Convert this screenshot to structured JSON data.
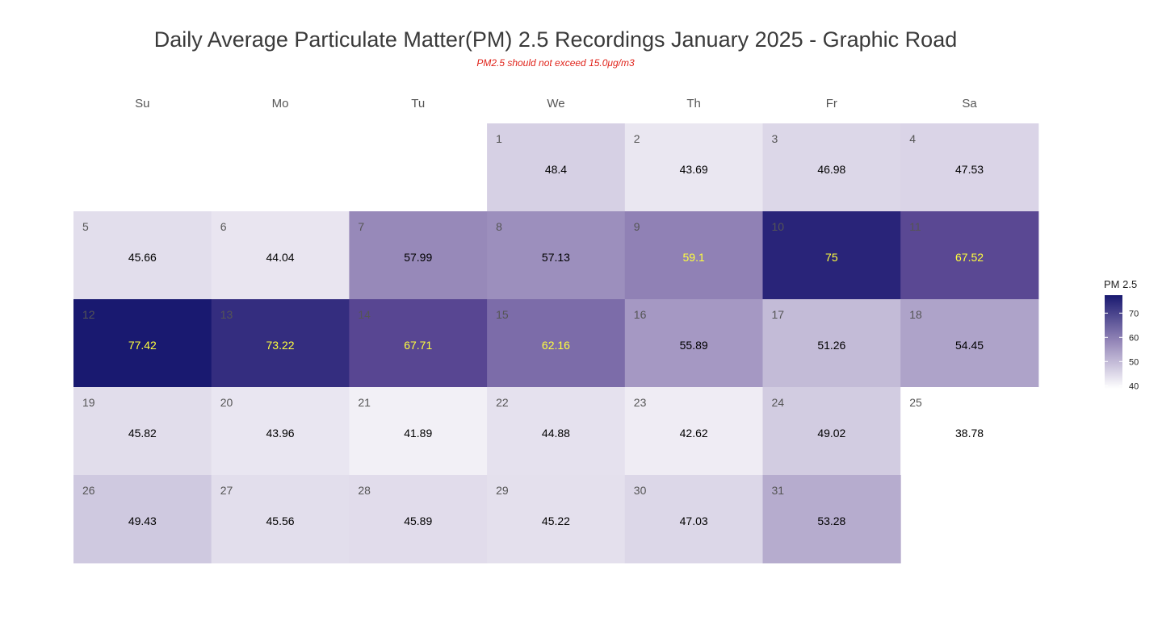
{
  "chart_data": {
    "type": "heatmap",
    "title": "Daily Average Particulate Matter(PM) 2.5 Recordings January 2025 -  Graphic Road",
    "subtitle": "PM2.5 should not exceed 15.0μg/m3",
    "weekdays": [
      "Su",
      "Mo",
      "Tu",
      "We",
      "Th",
      "Fr",
      "Sa"
    ],
    "first_weekday_index": 3,
    "days": [
      1,
      2,
      3,
      4,
      5,
      6,
      7,
      8,
      9,
      10,
      11,
      12,
      13,
      14,
      15,
      16,
      17,
      18,
      19,
      20,
      21,
      22,
      23,
      24,
      25,
      26,
      27,
      28,
      29,
      30,
      31
    ],
    "labels": [
      "48.4",
      "43.69",
      "46.98",
      "47.53",
      "45.66",
      "44.04",
      "57.99",
      "57.13",
      "59.1",
      "75",
      "67.52",
      "77.42",
      "73.22",
      "67.71",
      "62.16",
      "55.89",
      "51.26",
      "54.45",
      "45.82",
      "43.96",
      "41.89",
      "44.88",
      "42.62",
      "49.02",
      "38.78",
      "49.43",
      "45.56",
      "45.89",
      "45.22",
      "47.03",
      "53.28"
    ],
    "values": [
      48.4,
      43.69,
      46.98,
      47.53,
      45.66,
      44.04,
      57.99,
      57.13,
      59.1,
      75,
      67.52,
      77.42,
      73.22,
      67.71,
      62.16,
      55.89,
      51.26,
      54.45,
      45.82,
      43.96,
      41.89,
      44.88,
      42.62,
      49.02,
      38.78,
      49.43,
      45.56,
      45.89,
      45.22,
      47.03,
      53.28
    ],
    "highlight_threshold": 59,
    "legend": {
      "title": "PM 2.5",
      "ticks": [
        40,
        50,
        60,
        70
      ],
      "range": [
        38.78,
        77.42
      ],
      "colors": {
        "low": "#ffffff",
        "high": "#191970"
      },
      "position": "right"
    },
    "colors": {
      "title": "#3a3a3a",
      "subtitle": "#e0241b",
      "value_text_normal": "#000000",
      "value_text_high": "#ffff3c",
      "daynum_text": "#555555"
    }
  }
}
